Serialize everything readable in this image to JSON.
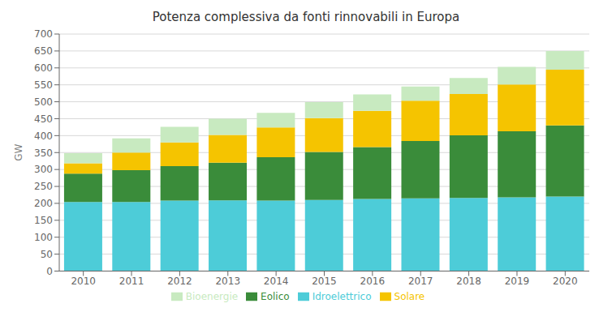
{
  "chart_data": {
    "type": "bar",
    "title": "Potenza complessiva da fonti rinnovabili in Europa",
    "ylabel": "GW",
    "categories": [
      "2010",
      "2011",
      "2012",
      "2013",
      "2014",
      "2015",
      "2016",
      "2017",
      "2018",
      "2019",
      "2020"
    ],
    "series": [
      {
        "name": "Idroelettrico",
        "color": "#4DCCD8",
        "values": [
          204,
          204,
          208,
          209,
          208,
          210,
          213,
          215,
          216,
          218,
          220
        ]
      },
      {
        "name": "Eolico",
        "color": "#3A8C3A",
        "values": [
          84,
          94,
          102,
          111,
          128,
          142,
          153,
          169,
          185,
          195,
          210
        ]
      },
      {
        "name": "Solare",
        "color": "#F5C400",
        "values": [
          30,
          52,
          70,
          82,
          88,
          100,
          107,
          119,
          122,
          138,
          165
        ]
      },
      {
        "name": "Bioenergie",
        "color": "#C8EAC0",
        "values": [
          30,
          42,
          46,
          48,
          43,
          47,
          49,
          42,
          47,
          52,
          55
        ]
      }
    ],
    "stacked": true,
    "ylim": [
      0,
      700
    ],
    "yticks": [
      0,
      50,
      100,
      150,
      200,
      250,
      300,
      350,
      400,
      450,
      500,
      550,
      600,
      650,
      700
    ],
    "grid": true,
    "legend": "bottom"
  }
}
